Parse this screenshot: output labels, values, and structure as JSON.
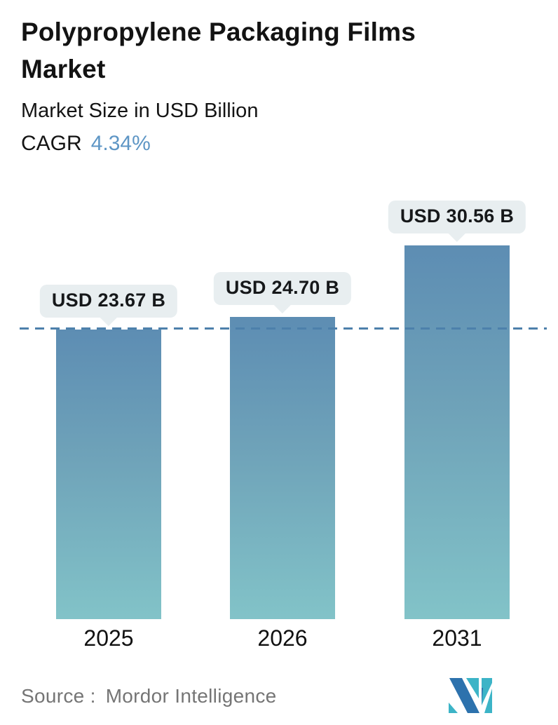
{
  "header": {
    "title": "Polypropylene Packaging Films Market",
    "subtitle": "Market Size in USD Billion",
    "cagr_label": "CAGR",
    "cagr_value": "4.34%"
  },
  "chart_data": {
    "type": "bar",
    "title": "Polypropylene Packaging Films Market",
    "subtitle": "Market Size in USD Billion",
    "cagr": "4.34%",
    "unit": "USD Billion",
    "categories": [
      "2025",
      "2026",
      "2031"
    ],
    "values": [
      23.67,
      24.7,
      30.56
    ],
    "data_labels": [
      "USD 23.67 B",
      "USD 24.70 B",
      "USD 30.56 B"
    ],
    "ylim": [
      0,
      34.5
    ],
    "grid": false,
    "legend": false,
    "reference_line": {
      "style": "dashed",
      "at_value": 23.67,
      "meaning": "2025 market size level"
    },
    "bar_gradient": {
      "top": "#5d8db3",
      "bottom": "#82c3c8"
    }
  },
  "footer": {
    "source_label": "Source :",
    "source_name": "Mordor Intelligence",
    "logo_name": "mordor-intelligence-logo"
  },
  "colors": {
    "accent_blue": "#5e96c5",
    "dashed_line": "#4d80ab",
    "callout_bg": "#e8eef0",
    "text_dark": "#141414",
    "text_gray": "#757575",
    "logo_blue": "#2d72ad",
    "logo_teal": "#3cb4c7"
  }
}
